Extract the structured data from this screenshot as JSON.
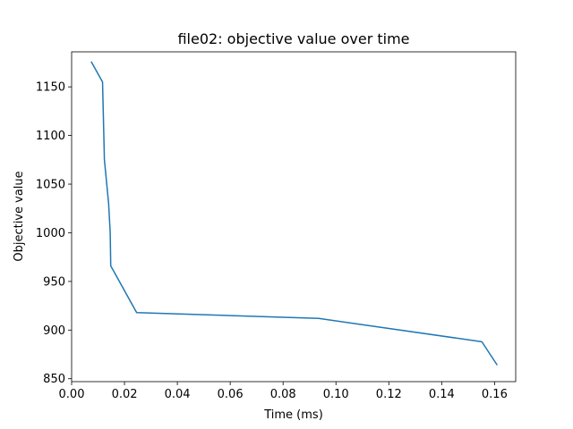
{
  "chart_data": {
    "type": "line",
    "title": "file02: objective value over time",
    "xlabel": "Time (ms)",
    "ylabel": "Objective value",
    "xlim": [
      0.0,
      0.168
    ],
    "ylim": [
      847,
      1186
    ],
    "x_ticks": [
      0.0,
      0.02,
      0.04,
      0.06,
      0.08,
      0.1,
      0.12,
      0.14,
      0.16
    ],
    "x_tick_labels": [
      "0.00",
      "0.02",
      "0.04",
      "0.06",
      "0.08",
      "0.10",
      "0.12",
      "0.14",
      "0.16"
    ],
    "y_ticks": [
      850,
      900,
      950,
      1000,
      1050,
      1100,
      1150
    ],
    "y_tick_labels": [
      "850",
      "900",
      "950",
      "1000",
      "1050",
      "1100",
      "1150"
    ],
    "grid": false,
    "series": [
      {
        "color": "#1f77b4",
        "x": [
          0.0074,
          0.0117,
          0.0124,
          0.014,
          0.0146,
          0.0148,
          0.0246,
          0.0935,
          0.1552,
          0.161
        ],
        "y": [
          1176,
          1155,
          1075,
          1030,
          1000,
          966,
          918,
          912,
          888,
          864
        ]
      }
    ]
  }
}
